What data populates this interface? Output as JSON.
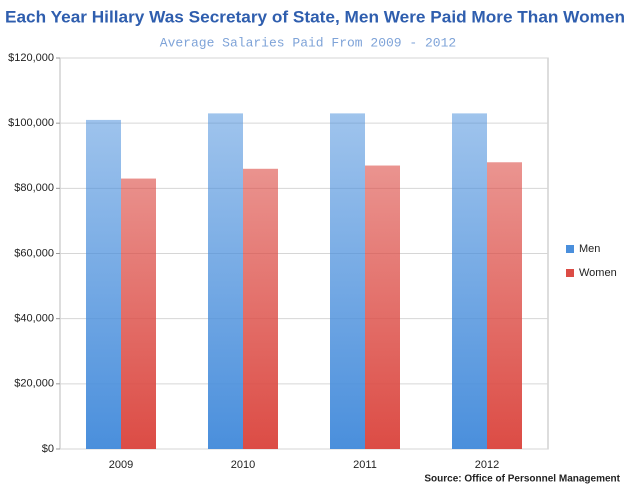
{
  "chart_data": {
    "type": "bar",
    "title": "Each Year Hillary Was Secretary of State, Men Were Paid More Than Women",
    "subtitle": "Average Salaries Paid From 2009 - 2012",
    "source": "Source: Office of Personnel Management",
    "categories": [
      "2009",
      "2010",
      "2011",
      "2012"
    ],
    "series": [
      {
        "name": "Men",
        "color": "#4a8fdc",
        "values": [
          101000,
          103000,
          103000,
          103000
        ]
      },
      {
        "name": "Women",
        "color": "#dc4c45",
        "values": [
          83000,
          86000,
          87000,
          88000
        ]
      }
    ],
    "ylim": [
      0,
      120000
    ],
    "yticks": [
      {
        "value": 0,
        "label": "$0"
      },
      {
        "value": 20000,
        "label": "$20,000"
      },
      {
        "value": 40000,
        "label": "$40,000"
      },
      {
        "value": 60000,
        "label": "$60,000"
      },
      {
        "value": 80000,
        "label": "$80,000"
      },
      {
        "value": 100000,
        "label": "$100,000"
      },
      {
        "value": 120000,
        "label": "$120,000"
      }
    ],
    "grid": true,
    "legend": "right"
  }
}
